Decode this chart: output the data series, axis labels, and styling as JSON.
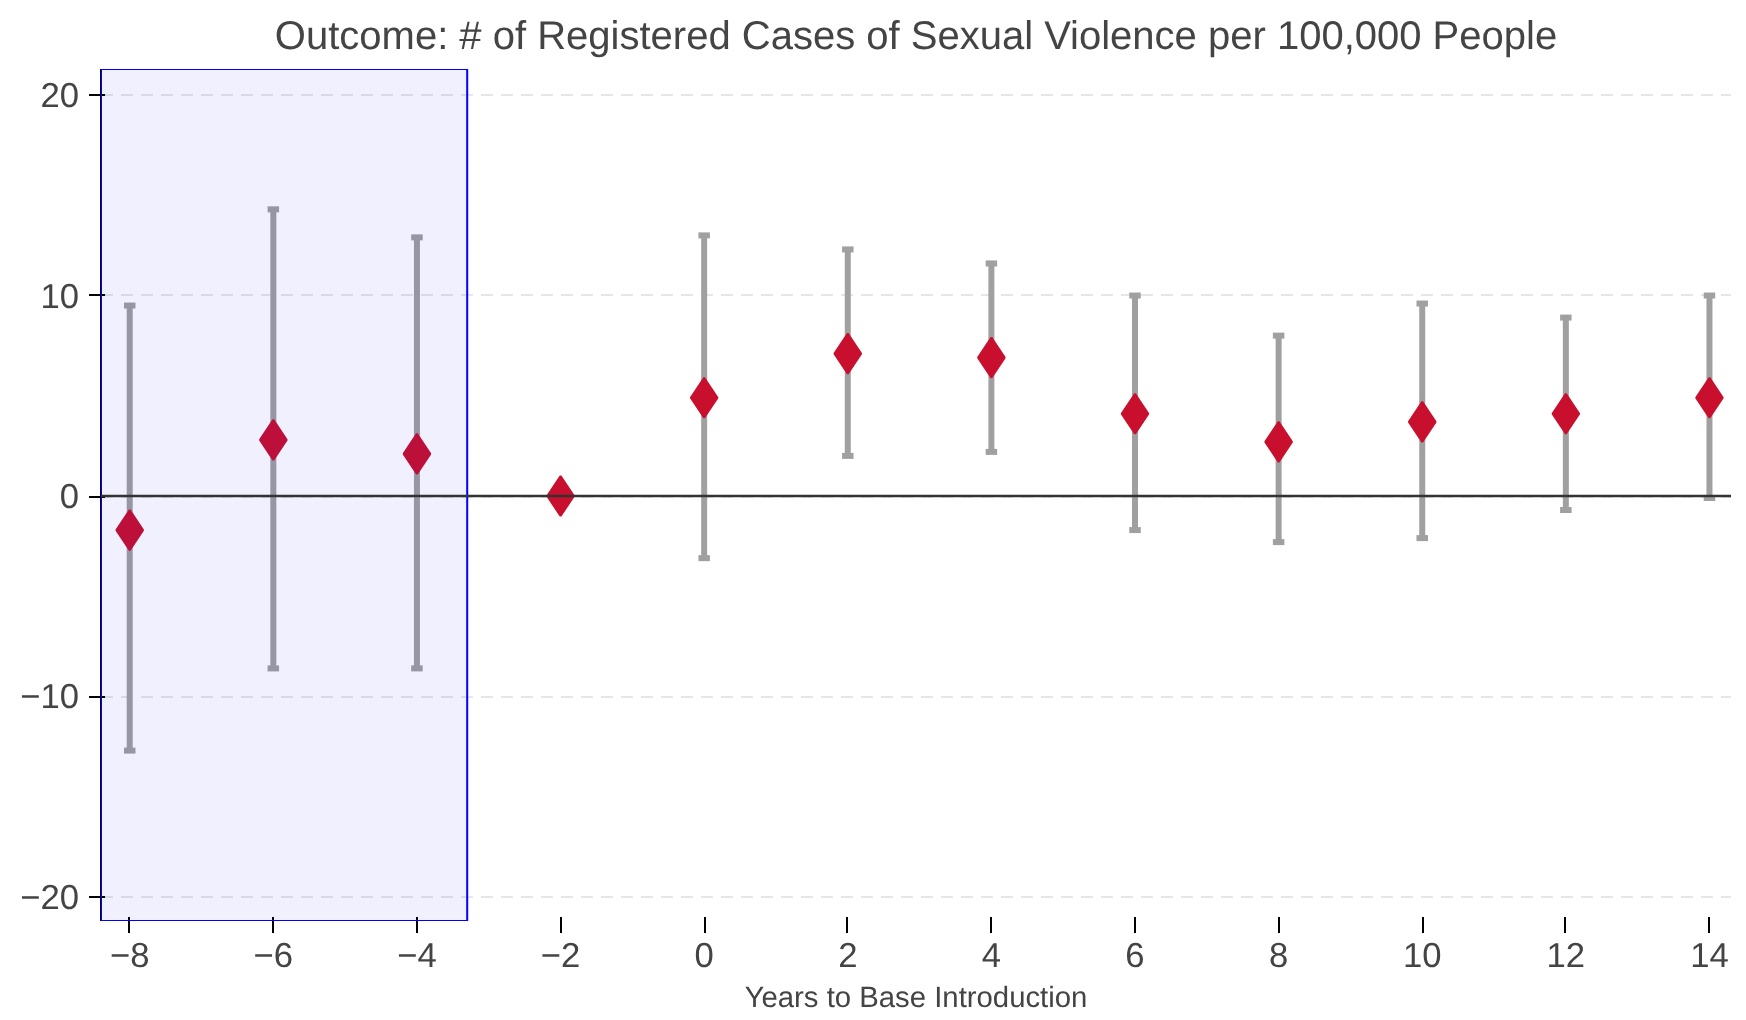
{
  "chart_data": {
    "type": "scatter",
    "title": "Outcome: # of Registered Cases of Sexual Violence per 100,000 People",
    "xlabel": "Years to Base Introduction",
    "x": [
      -8,
      -6,
      -4,
      -2,
      0,
      2,
      4,
      6,
      8,
      10,
      12,
      14
    ],
    "series": [
      {
        "color": "#c8102e",
        "values": [
          -1.7,
          2.8,
          2.1,
          0,
          4.9,
          7.1,
          6.9,
          4.1,
          2.7,
          3.7,
          4.1,
          4.9
        ],
        "errors": [
          [
            -12.7,
            9.5
          ],
          [
            -8.6,
            14.3
          ],
          [
            -8.6,
            12.9
          ],
          null,
          [
            -3.1,
            13.0
          ],
          [
            2.0,
            12.3
          ],
          [
            2.2,
            11.6
          ],
          [
            -1.7,
            10.0
          ],
          [
            -2.3,
            8.0
          ],
          [
            -2.1,
            9.6
          ],
          [
            -0.7,
            8.9
          ],
          [
            -0.1,
            10.0
          ]
        ]
      }
    ],
    "marker": "diamond",
    "xlim": [
      -8.4,
      14.3
    ],
    "ylim": [
      -21.2,
      21.3
    ],
    "xticks": [
      -8,
      -6,
      -4,
      -2,
      0,
      2,
      4,
      6,
      8,
      10,
      12,
      14
    ],
    "yticks": [
      -20,
      -10,
      0,
      10,
      20
    ],
    "grid": "y",
    "ref_lines": [
      {
        "axis": "y",
        "value": 0,
        "color": "#333333"
      }
    ],
    "bands": [
      {
        "axis": "x",
        "from": -8.4,
        "to": -3.3,
        "color": "#0000ff"
      }
    ]
  }
}
